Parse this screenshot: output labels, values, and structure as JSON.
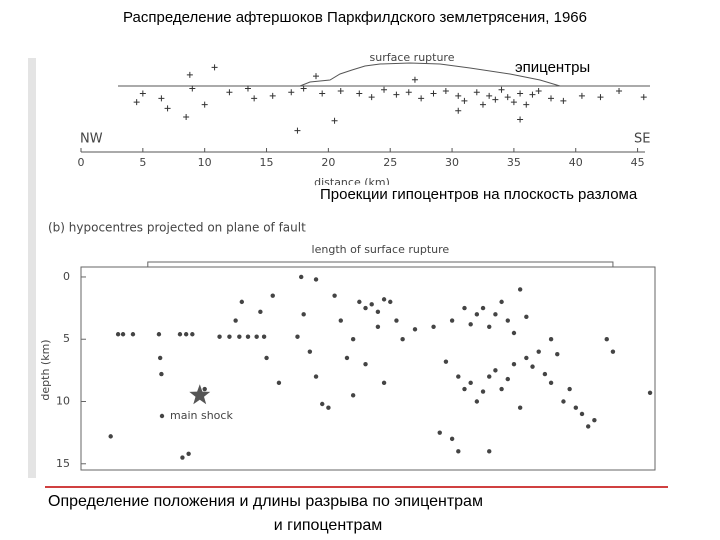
{
  "title": "Распределение афтершоков Паркфилдского землетрясения, 1966",
  "chart_data": [
    {
      "type": "scatter",
      "xlabel": "distance (km)",
      "annotations": [
        "surface rupture",
        "NW",
        "SE"
      ],
      "xlim": [
        0,
        45.6
      ],
      "xticks": [
        0,
        5,
        10,
        15,
        20,
        25,
        30,
        35,
        40,
        45
      ],
      "ylim": [
        -2.5,
        5
      ],
      "yinvert": true,
      "color": "#333333",
      "series": [
        {
          "name": "эпицентры",
          "x": [
            8.8,
            10.8,
            9.0,
            6.5,
            7.0,
            10.0,
            8.5,
            12.0,
            13.5,
            14.0,
            15.5,
            17.0,
            18.0,
            17.5,
            19.5,
            21.0,
            22.5,
            23.5,
            24.5,
            25.5,
            26.5,
            27.5,
            28.5,
            29.5,
            30.5,
            31.0,
            32.0,
            32.5,
            33.0,
            33.5,
            34.0,
            34.5,
            35.0,
            35.5,
            36.0,
            36.5,
            37.0,
            38.0,
            39.0,
            40.5,
            42.0,
            43.5,
            45.5,
            35.5,
            30.5,
            20.5,
            19.0,
            27.0,
            5.0,
            4.5
          ],
          "values": [
            -0.9,
            -1.5,
            0.2,
            1.0,
            1.8,
            1.5,
            2.5,
            0.5,
            0.2,
            1.0,
            0.8,
            0.5,
            0.2,
            3.6,
            0.6,
            0.4,
            0.6,
            0.9,
            0.3,
            0.7,
            0.5,
            1.0,
            0.6,
            0.4,
            0.8,
            1.2,
            0.5,
            1.5,
            0.8,
            1.1,
            0.3,
            0.9,
            1.3,
            0.6,
            1.5,
            0.7,
            0.4,
            1.0,
            1.2,
            0.8,
            0.9,
            0.4,
            0.9,
            2.7,
            2.0,
            2.8,
            -0.8,
            -0.5,
            0.6,
            1.3
          ]
        }
      ]
    },
    {
      "type": "scatter",
      "title": "(b) hypocentres projected on plane of fault",
      "subtitle": "Проекции гипоцентров на плоскость разлома",
      "ylabel": "depth (km)",
      "xlim": [
        0,
        46.4
      ],
      "ylim": [
        -0.8,
        15.5
      ],
      "yinvert": true,
      "yticks": [
        0,
        5,
        10,
        15
      ],
      "color": "#444444",
      "rupture": {
        "label": "length of surface rupture",
        "span": [
          5.4,
          43
        ]
      },
      "main_shock": {
        "label": "main shock",
        "x": 9.6,
        "depth": 9.5
      },
      "series": [
        {
          "x": [
            3.0,
            3.4,
            4.2,
            6.3,
            8.0,
            8.5,
            9.0,
            6.4,
            6.5,
            2.4,
            8.2,
            8.7,
            10.0,
            11.2,
            12.0,
            12.8,
            13.5,
            14.2,
            14.8,
            12.5,
            13.0,
            14.5,
            15.5,
            15.0,
            16.0,
            17.5,
            18.0,
            17.8,
            19.0,
            18.5,
            19.5,
            20.0,
            19.0,
            21.0,
            21.5,
            20.5,
            22.5,
            22.0,
            23.0,
            23.5,
            24.0,
            24.5,
            25.0,
            24.0,
            25.5,
            23.0,
            22.0,
            24.5,
            26.0,
            27.0,
            28.5,
            29.5,
            30.0,
            31.0,
            31.5,
            32.0,
            32.5,
            33.0,
            33.5,
            34.0,
            34.5,
            35.0,
            35.5,
            36.0,
            30.5,
            31.0,
            31.5,
            32.0,
            32.5,
            33.0,
            33.5,
            34.0,
            34.5,
            35.0,
            35.5,
            36.0,
            36.5,
            37.0,
            37.5,
            38.0,
            38.5,
            39.0,
            39.5,
            40.0,
            40.5,
            41.0,
            41.5,
            38.0,
            42.5,
            43.0,
            46.0,
            29.0,
            30.5,
            30.0,
            33.0
          ],
          "values": [
            4.6,
            4.6,
            4.6,
            4.6,
            4.6,
            4.6,
            4.6,
            6.5,
            7.8,
            12.8,
            14.5,
            14.2,
            9.0,
            4.8,
            4.8,
            4.8,
            4.8,
            4.8,
            4.8,
            3.5,
            2.0,
            2.8,
            1.5,
            6.5,
            8.5,
            4.8,
            3.0,
            0,
            0.2,
            6.0,
            10.2,
            10.5,
            8.0,
            3.5,
            6.5,
            1.5,
            2.0,
            5.0,
            2.5,
            2.2,
            2.8,
            1.8,
            2.0,
            4.0,
            3.5,
            7.0,
            9.5,
            8.5,
            5.0,
            4.2,
            4.0,
            6.8,
            3.5,
            2.5,
            3.8,
            3.0,
            2.5,
            4.0,
            3.0,
            2.0,
            3.5,
            4.5,
            1.0,
            3.2,
            8.0,
            9.0,
            8.5,
            10.0,
            9.2,
            8.0,
            7.5,
            9.0,
            8.2,
            7.0,
            10.5,
            6.5,
            7.2,
            6.0,
            7.8,
            8.5,
            6.2,
            10.0,
            9.0,
            10.5,
            11.0,
            12.0,
            11.5,
            5.0,
            5.0,
            6.0,
            9.3,
            12.5,
            14.0,
            13.0,
            14.0
          ]
        }
      ]
    }
  ],
  "caption_lines": [
    "Определение положения  и длины разрыва по эпицентрам",
    "и гипоцентрам"
  ]
}
